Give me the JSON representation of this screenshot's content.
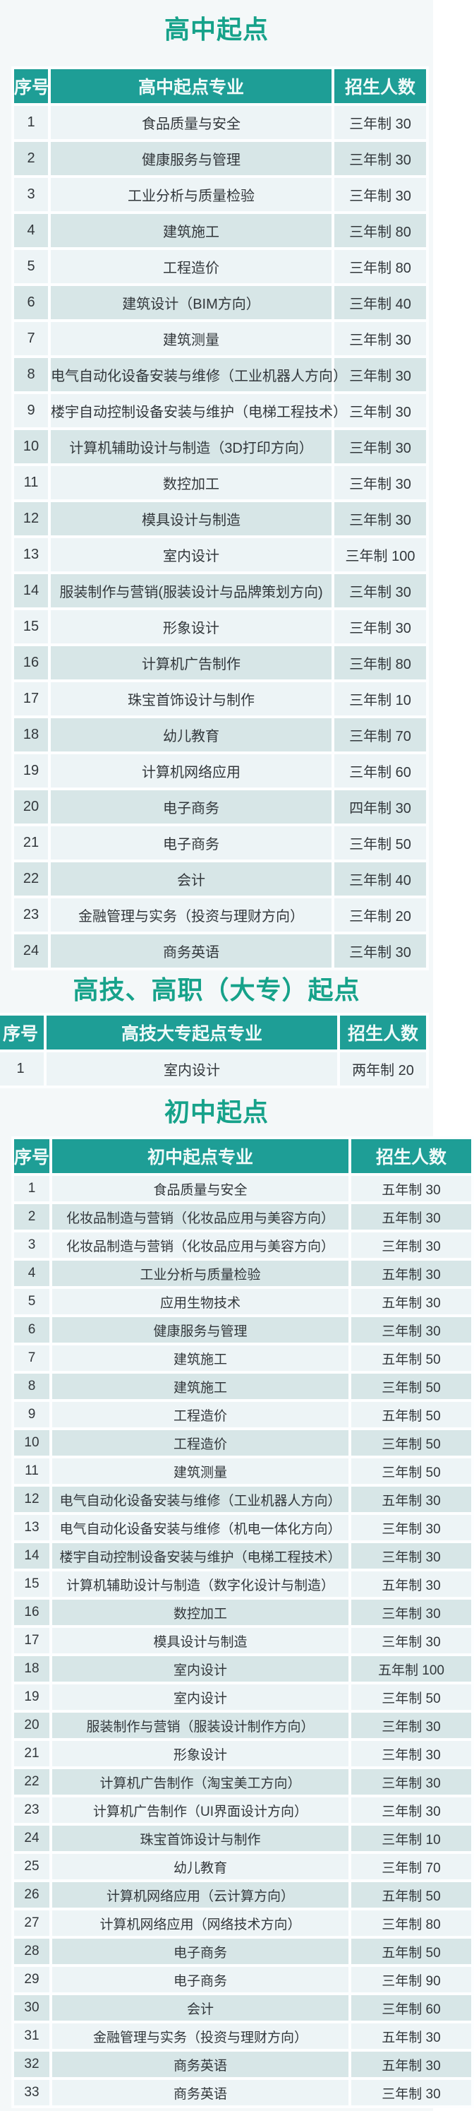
{
  "colors": {
    "title_green": "#16a28a",
    "header_teal": "#1e9e96",
    "row_light": "#edf4f6",
    "row_dark": "#d7e6e7",
    "page_background": "#f4f8f9",
    "cell_text": "#32373b",
    "header_text": "#f0faf9"
  },
  "sections": [
    {
      "title": "高中起点",
      "columns": [
        "序号",
        "高中起点专业",
        "招生人数"
      ],
      "rows": [
        [
          "1",
          "食品质量与安全",
          "三年制 30"
        ],
        [
          "2",
          "健康服务与管理",
          "三年制 30"
        ],
        [
          "3",
          "工业分析与质量检验",
          "三年制 30"
        ],
        [
          "4",
          "建筑施工",
          "三年制 80"
        ],
        [
          "5",
          "工程造价",
          "三年制 80"
        ],
        [
          "6",
          "建筑设计（BIM方向）",
          "三年制 40"
        ],
        [
          "7",
          "建筑测量",
          "三年制 30"
        ],
        [
          "8",
          "电气自动化设备安装与维修（工业机器人方向）",
          "三年制 30"
        ],
        [
          "9",
          "楼宇自动控制设备安装与维护（电梯工程技术）",
          "三年制 30"
        ],
        [
          "10",
          "计算机辅助设计与制造（3D打印方向）",
          "三年制 30"
        ],
        [
          "11",
          "数控加工",
          "三年制 30"
        ],
        [
          "12",
          "模具设计与制造",
          "三年制 30"
        ],
        [
          "13",
          "室内设计",
          "三年制 100"
        ],
        [
          "14",
          "服装制作与营销(服装设计与品牌策划方向)",
          "三年制 30"
        ],
        [
          "15",
          "形象设计",
          "三年制 30"
        ],
        [
          "16",
          "计算机广告制作",
          "三年制 80"
        ],
        [
          "17",
          "珠宝首饰设计与制作",
          "三年制 10"
        ],
        [
          "18",
          "幼儿教育",
          "三年制 70"
        ],
        [
          "19",
          "计算机网络应用",
          "三年制 60"
        ],
        [
          "20",
          "电子商务",
          "四年制 30"
        ],
        [
          "21",
          "电子商务",
          "三年制 50"
        ],
        [
          "22",
          "会计",
          "三年制 40"
        ],
        [
          "23",
          "金融管理与实务（投资与理财方向）",
          "三年制 20"
        ],
        [
          "24",
          "商务英语",
          "三年制 30"
        ]
      ]
    },
    {
      "title": "高技、高职（大专）起点",
      "columns": [
        "序号",
        "高技大专起点专业",
        "招生人数"
      ],
      "rows": [
        [
          "1",
          "室内设计",
          "两年制 20"
        ]
      ]
    },
    {
      "title": "初中起点",
      "columns": [
        "序号",
        "初中起点专业",
        "招生人数"
      ],
      "rows": [
        [
          "1",
          "食品质量与安全",
          "五年制 30"
        ],
        [
          "2",
          "化妆品制造与营销（化妆品应用与美容方向）",
          "五年制 30"
        ],
        [
          "3",
          "化妆品制造与营销（化妆品应用与美容方向）",
          "三年制 30"
        ],
        [
          "4",
          "工业分析与质量检验",
          "五年制 30"
        ],
        [
          "5",
          "应用生物技术",
          "五年制 30"
        ],
        [
          "6",
          "健康服务与管理",
          "三年制 30"
        ],
        [
          "7",
          "建筑施工",
          "五年制 50"
        ],
        [
          "8",
          "建筑施工",
          "三年制 50"
        ],
        [
          "9",
          "工程造价",
          "五年制 50"
        ],
        [
          "10",
          "工程造价",
          "三年制 50"
        ],
        [
          "11",
          "建筑测量",
          "三年制 50"
        ],
        [
          "12",
          "电气自动化设备安装与维修（工业机器人方向）",
          "五年制 30"
        ],
        [
          "13",
          "电气自动化设备安装与维修（机电一体化方向）",
          "三年制 30"
        ],
        [
          "14",
          "楼宇自动控制设备安装与维护（电梯工程技术）",
          "三年制 30"
        ],
        [
          "15",
          "计算机辅助设计与制造（数字化设计与制造）",
          "五年制 30"
        ],
        [
          "16",
          "数控加工",
          "三年制 30"
        ],
        [
          "17",
          "模具设计与制造",
          "三年制 30"
        ],
        [
          "18",
          "室内设计",
          "五年制 100"
        ],
        [
          "19",
          "室内设计",
          "三年制 50"
        ],
        [
          "20",
          "服装制作与营销（服装设计制作方向）",
          "三年制 30"
        ],
        [
          "21",
          "形象设计",
          "三年制 30"
        ],
        [
          "22",
          "计算机广告制作（淘宝美工方向）",
          "三年制 30"
        ],
        [
          "23",
          "计算机广告制作（UI界面设计方向）",
          "三年制 30"
        ],
        [
          "24",
          "珠宝首饰设计与制作",
          "三年制 10"
        ],
        [
          "25",
          "幼儿教育",
          "三年制 70"
        ],
        [
          "26",
          "计算机网络应用（云计算方向）",
          "五年制 50"
        ],
        [
          "27",
          "计算机网络应用（网络技术方向）",
          "三年制 80"
        ],
        [
          "28",
          "电子商务",
          "五年制 50"
        ],
        [
          "29",
          "电子商务",
          "三年制 90"
        ],
        [
          "30",
          "会计",
          "三年制 60"
        ],
        [
          "31",
          "金融管理与实务（投资与理财方向）",
          "五年制 30"
        ],
        [
          "32",
          "商务英语",
          "五年制 30"
        ],
        [
          "33",
          "商务英语",
          "三年制 30"
        ]
      ]
    }
  ]
}
